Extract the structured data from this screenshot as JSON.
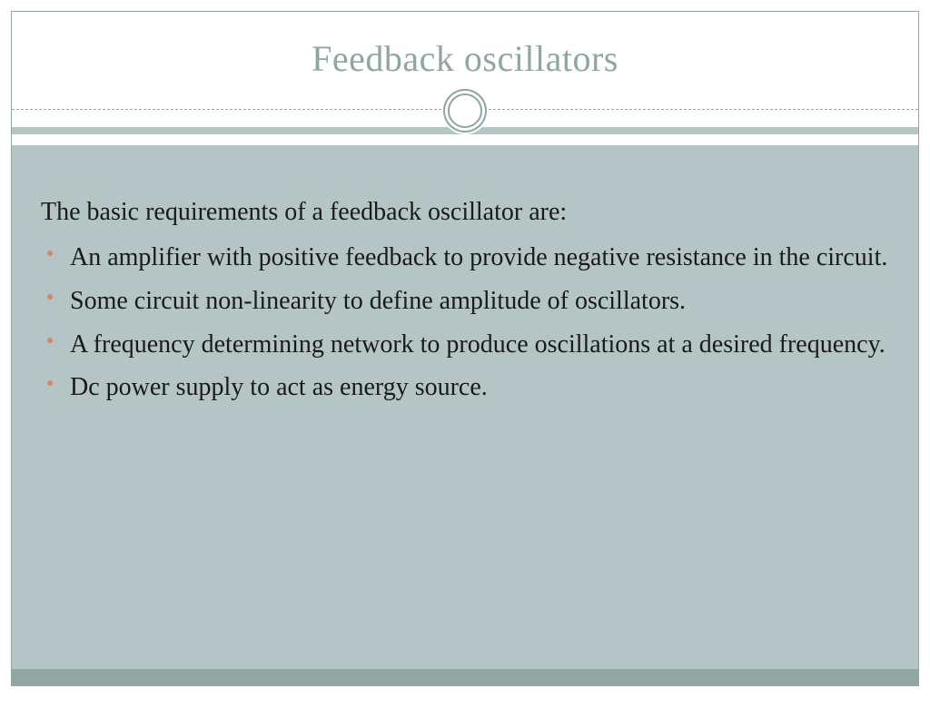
{
  "colors": {
    "title_color": "#8fa6a3",
    "bullet_color": "#d9856b",
    "body_bg": "#b5c4c4",
    "footer_bg": "#8fa6a3",
    "border": "#8fa6a3",
    "text": "#1a1a1a"
  },
  "title": "Feedback oscillators",
  "intro": "The basic requirements of a feedback oscillator are:",
  "bullets": [
    "An amplifier with positive feedback to provide negative resistance in the circuit.",
    "Some circuit non-linearity to define amplitude of oscillators.",
    "A frequency determining network to produce oscillations at a desired frequency.",
    "Dc power supply to act as energy source."
  ],
  "typography": {
    "title_fontsize": 40,
    "body_fontsize": 28,
    "font_family": "Georgia, serif"
  }
}
